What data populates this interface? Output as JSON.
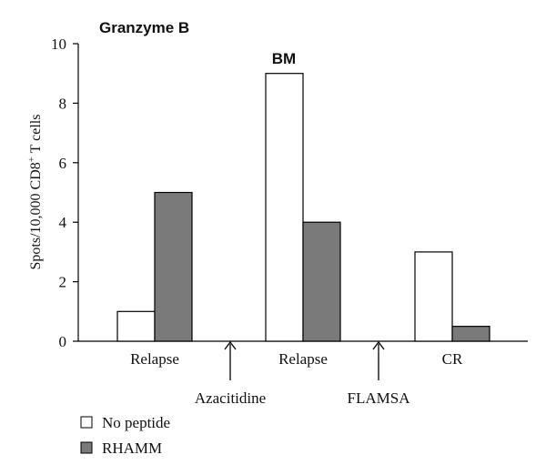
{
  "chart_data": {
    "type": "bar",
    "title": "Granzyme B",
    "ylabel_prefix": "Spots/10,000 CD8",
    "ylabel_sup": "+",
    "ylabel_suffix": " T cells",
    "ylim": [
      0,
      10
    ],
    "yticks": [
      "0",
      "2",
      "4",
      "6",
      "8",
      "10"
    ],
    "categories": [
      "Relapse",
      "Relapse",
      "CR"
    ],
    "series": [
      {
        "name": "No peptide",
        "values": [
          1,
          9,
          3
        ],
        "color": "#ffffff"
      },
      {
        "name": "RHAMM",
        "values": [
          5,
          4,
          0.5
        ],
        "color": "#7a7a7a"
      }
    ],
    "annotations": {
      "group_label": "BM",
      "treatments": [
        "Azacitidine",
        "FLAMSA"
      ]
    },
    "grid": false,
    "legend_position": "bottom-left"
  }
}
